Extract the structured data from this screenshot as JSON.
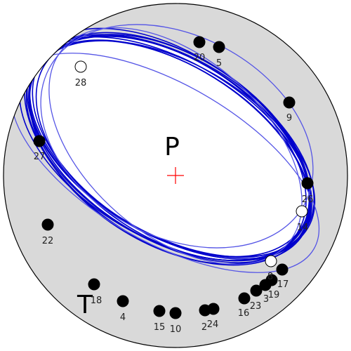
{
  "labels": {
    "p_axis": "P",
    "t_axis": "T"
  },
  "colors": {
    "background": "#ffffff",
    "compression_quadrant": "#d9d9d9",
    "dilatation_quadrant": "#ffffff",
    "nodal_plane_dark": "#0000cc",
    "nodal_plane_light": "#5555e6",
    "p_cross": "#ff0000",
    "outline": "#000000"
  },
  "stations": [
    {
      "id": "20",
      "polarity": "compression"
    },
    {
      "id": "5",
      "polarity": "compression"
    },
    {
      "id": "28",
      "polarity": "dilatation"
    },
    {
      "id": "9",
      "polarity": "compression"
    },
    {
      "id": "27",
      "polarity": "compression"
    },
    {
      "id": "26",
      "polarity": "compression"
    },
    {
      "id": "14",
      "polarity": "dilatation"
    },
    {
      "id": "22",
      "polarity": "compression"
    },
    {
      "id": "8",
      "polarity": "dilatation"
    },
    {
      "id": "17",
      "polarity": "compression"
    },
    {
      "id": "19",
      "polarity": "compression"
    },
    {
      "id": "3",
      "polarity": "compression"
    },
    {
      "id": "23",
      "polarity": "compression"
    },
    {
      "id": "16",
      "polarity": "compression"
    },
    {
      "id": "18",
      "polarity": "compression"
    },
    {
      "id": "4",
      "polarity": "compression"
    },
    {
      "id": "15",
      "polarity": "compression"
    },
    {
      "id": "10",
      "polarity": "compression"
    },
    {
      "id": "2",
      "polarity": "compression"
    },
    {
      "id": "24",
      "polarity": "compression"
    }
  ]
}
